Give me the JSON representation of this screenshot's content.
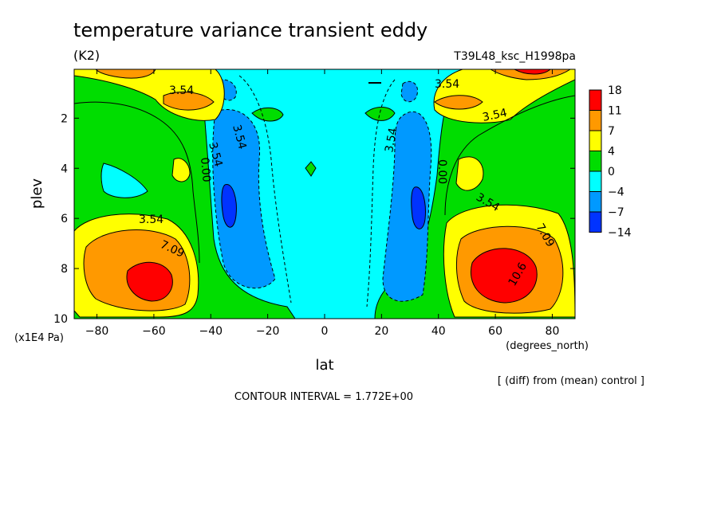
{
  "chart_data": {
    "type": "contour",
    "title": "temperature variance transient eddy",
    "units": "(K2)",
    "run_label": "T39L48_ksc_H1998pa",
    "xlabel": "lat",
    "xunits": "(degrees_north)",
    "ylabel": "plev",
    "yunits": "(x1E4 Pa)",
    "xlim": [
      -88,
      88
    ],
    "ylim": [
      10,
      0.05
    ],
    "x_ticks": [
      -80,
      -60,
      -40,
      -20,
      0,
      20,
      40,
      60,
      80
    ],
    "x_tick_labels": [
      "−80",
      "−60",
      "−40",
      "−20",
      "0",
      "20",
      "40",
      "60",
      "80"
    ],
    "y_ticks": [
      2,
      4,
      6,
      8,
      10
    ],
    "y_tick_labels": [
      "2",
      "4",
      "6",
      "8",
      "10"
    ],
    "note": "[ (diff) from (mean) control ]",
    "contour_interval_text": "CONTOUR INTERVAL = 1.772E+00",
    "contour_labels": [
      "3.54",
      "3.54",
      "7.09",
      "3.54",
      "0.00",
      "3.54",
      "0.00",
      "3.54",
      "3.54",
      "7.09",
      "10.6",
      "3.54",
      "3.54"
    ],
    "colorbar": {
      "levels": [
        "18",
        "11",
        "7",
        "4",
        "0",
        "−4",
        "−7",
        "−14"
      ],
      "colors": [
        "#ff0000",
        "#ff9900",
        "#ffff00",
        "#00dd00",
        "#00ffff",
        "#0099ff",
        "#0033ff"
      ]
    },
    "features": [
      {
        "lat": -58,
        "plev": 8.4,
        "peak": 16
      },
      {
        "lat": 60,
        "plev": 8.4,
        "peak": 17
      },
      {
        "lat": -47,
        "plev": 1.4,
        "peak": 10
      },
      {
        "lat": 47,
        "plev": 1.4,
        "peak": 10
      },
      {
        "lat": -60,
        "plev": 0.1,
        "peak": 14
      },
      {
        "lat": 70,
        "plev": 0.1,
        "peak": 14
      },
      {
        "lat": -35,
        "plev": 5.3,
        "peak": -9
      },
      {
        "lat": 33,
        "plev": 5.3,
        "peak": -9
      },
      {
        "lat": -75,
        "plev": 4.6,
        "peak": -3
      }
    ]
  }
}
